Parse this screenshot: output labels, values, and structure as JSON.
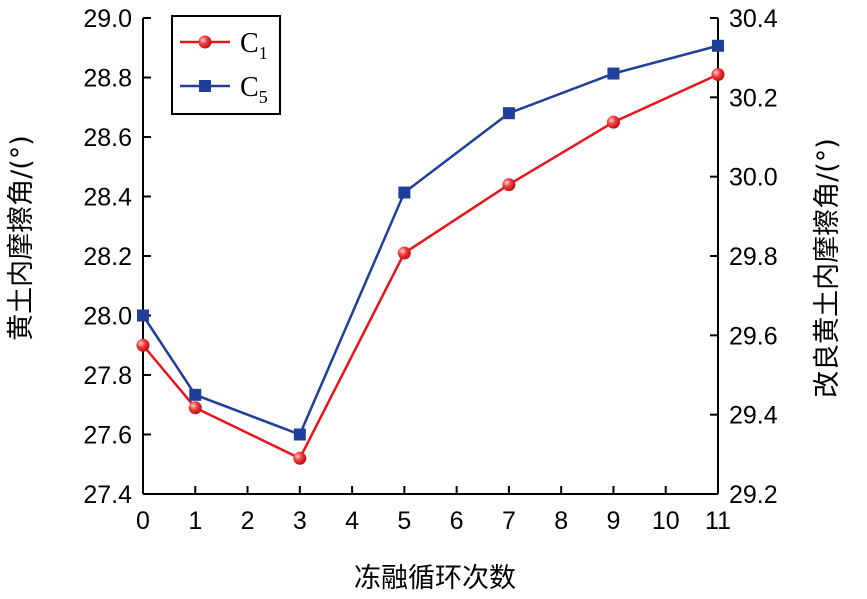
{
  "chart_data": {
    "type": "line",
    "xlabel": "冻融循环次数",
    "ylabel_left": "黄土内摩擦角/(°)",
    "ylabel_right": "改良黄土内摩擦角/(°)",
    "xlim": [
      0,
      11
    ],
    "ylim_left": [
      27.4,
      29.0
    ],
    "ylim_right": [
      29.2,
      30.4
    ],
    "x_ticks": [
      "0",
      "1",
      "2",
      "3",
      "4",
      "5",
      "6",
      "7",
      "8",
      "9",
      "10",
      "11"
    ],
    "y_left_ticks": [
      "27.4",
      "27.6",
      "27.8",
      "28.0",
      "28.2",
      "28.4",
      "28.6",
      "28.8",
      "29.0"
    ],
    "y_right_ticks": [
      "29.2",
      "29.4",
      "29.6",
      "29.8",
      "30.0",
      "30.2",
      "30.4"
    ],
    "legend_position": "top-left",
    "grid": false,
    "series": [
      {
        "name": "C",
        "name_sub": "1",
        "axis": "left",
        "marker": "circle",
        "color": "#e8161c",
        "x": [
          0,
          1,
          3,
          5,
          7,
          9,
          11
        ],
        "y": [
          27.9,
          27.69,
          27.52,
          28.21,
          28.44,
          28.65,
          28.81
        ]
      },
      {
        "name": "C",
        "name_sub": "5",
        "axis": "right",
        "marker": "square",
        "color": "#1f3f9a",
        "x": [
          0,
          1,
          3,
          5,
          7,
          9,
          11
        ],
        "y": [
          29.65,
          29.45,
          29.35,
          29.96,
          30.16,
          30.26,
          30.33
        ]
      }
    ]
  }
}
